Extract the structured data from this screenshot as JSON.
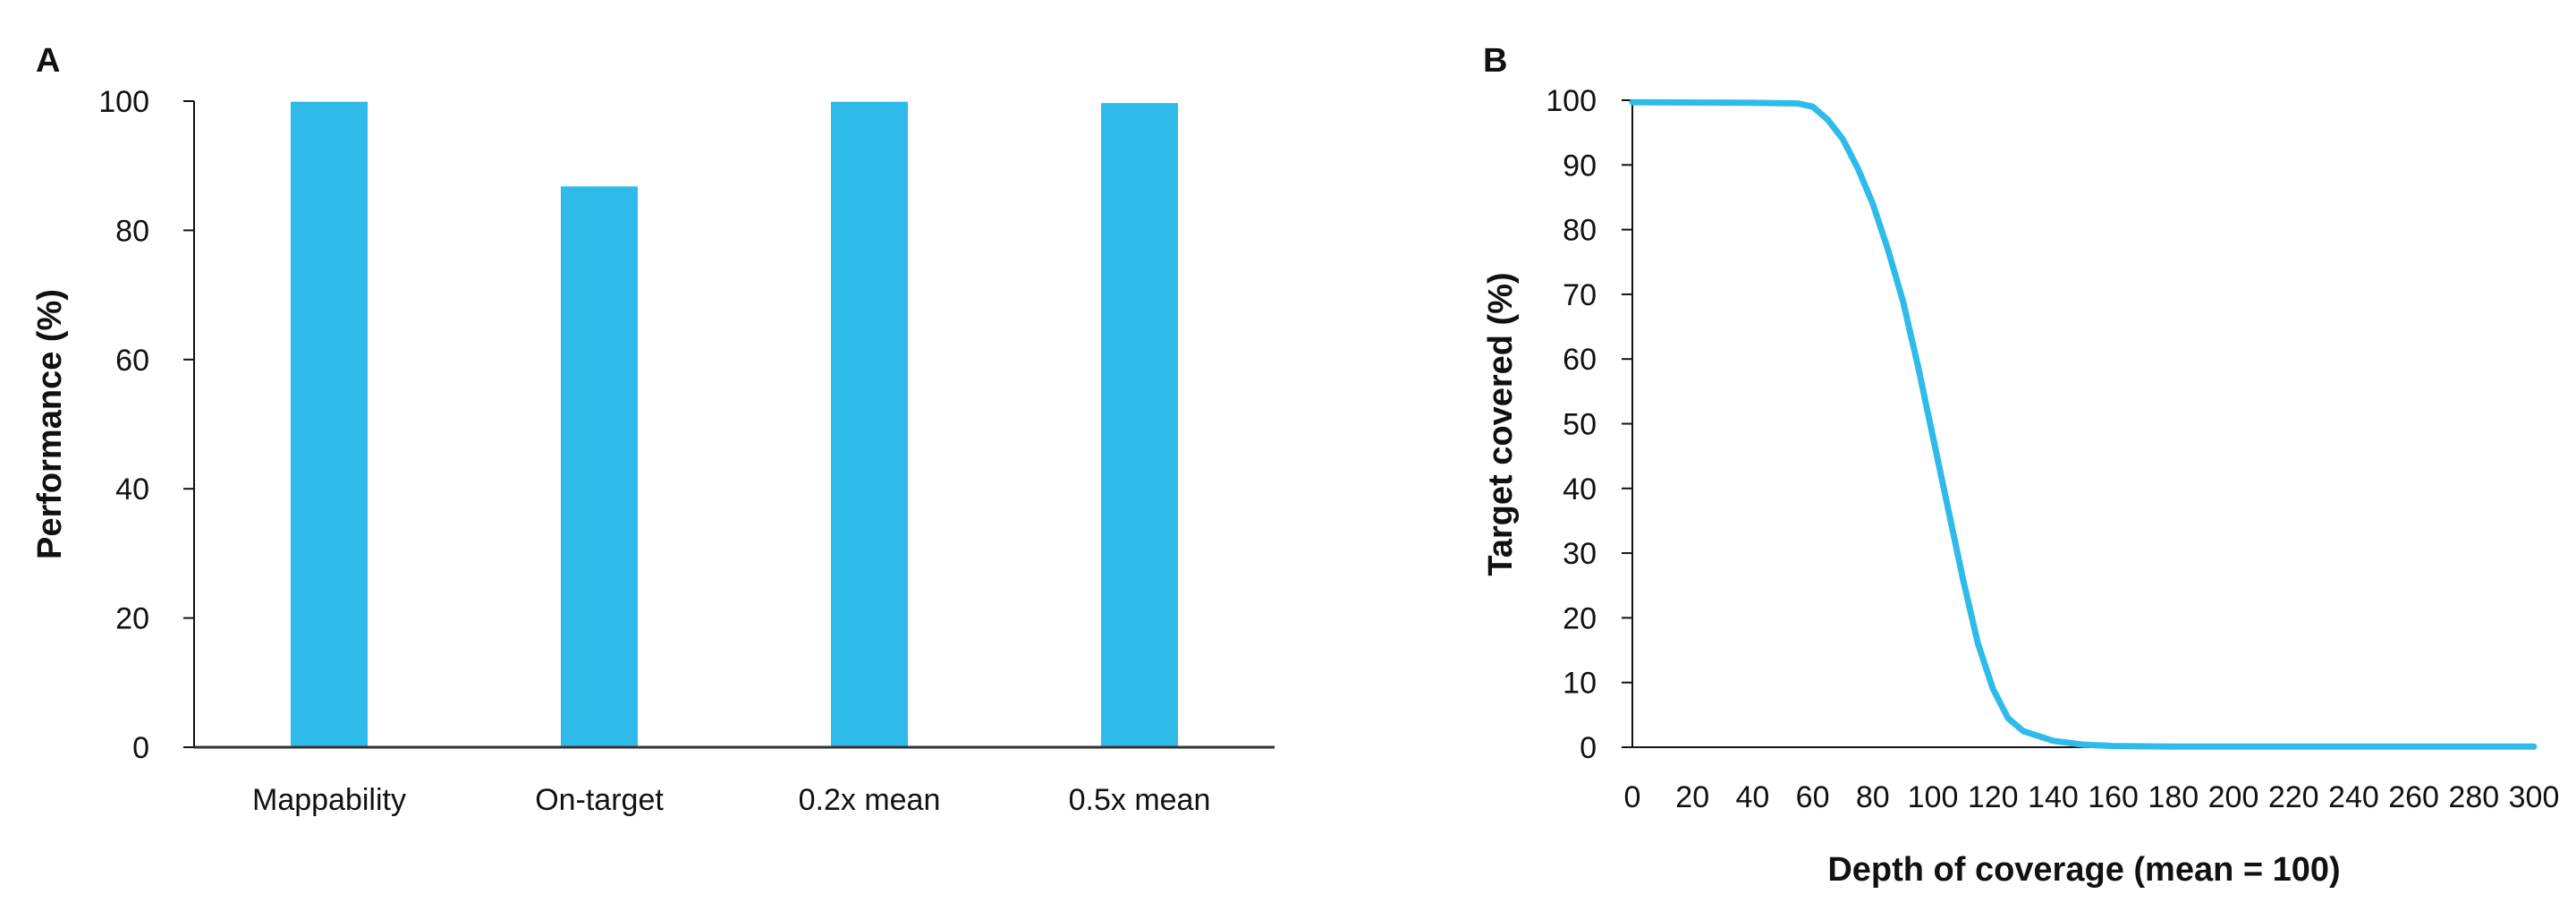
{
  "chart_data": [
    {
      "panel_label": "A",
      "type": "bar",
      "categories": [
        "Mappability",
        "On-target",
        "0.2x mean",
        "0.5x mean"
      ],
      "values": [
        99.9,
        86.8,
        99.9,
        99.7
      ],
      "xlabel": "",
      "ylabel": "Performance (%)",
      "ylim": [
        0,
        100
      ],
      "yticks": [
        0,
        20,
        40,
        60,
        80,
        100
      ],
      "grid": false,
      "color": "#2fbbea"
    },
    {
      "panel_label": "B",
      "type": "line",
      "xlabel": "Depth of coverage (mean = 100)",
      "ylabel": "Target covered (%)",
      "xlim": [
        0,
        300
      ],
      "ylim": [
        0,
        100
      ],
      "xticks": [
        0,
        20,
        40,
        60,
        80,
        100,
        120,
        140,
        160,
        180,
        200,
        220,
        240,
        260,
        280,
        300
      ],
      "yticks": [
        0,
        10,
        20,
        30,
        40,
        50,
        60,
        70,
        80,
        90,
        100
      ],
      "grid": false,
      "color": "#2fbbea",
      "series": [
        {
          "x": [
            0,
            40,
            55,
            60,
            65,
            70,
            75,
            80,
            85,
            90,
            95,
            100,
            105,
            110,
            115,
            120,
            125,
            130,
            140,
            150,
            160,
            180,
            300
          ],
          "y": [
            99.7,
            99.6,
            99.5,
            99,
            97,
            94,
            89.5,
            84,
            77,
            69,
            59,
            48,
            37,
            26,
            16,
            9,
            4.5,
            2.5,
            1,
            0.4,
            0.2,
            0.1,
            0.1
          ]
        }
      ]
    }
  ]
}
